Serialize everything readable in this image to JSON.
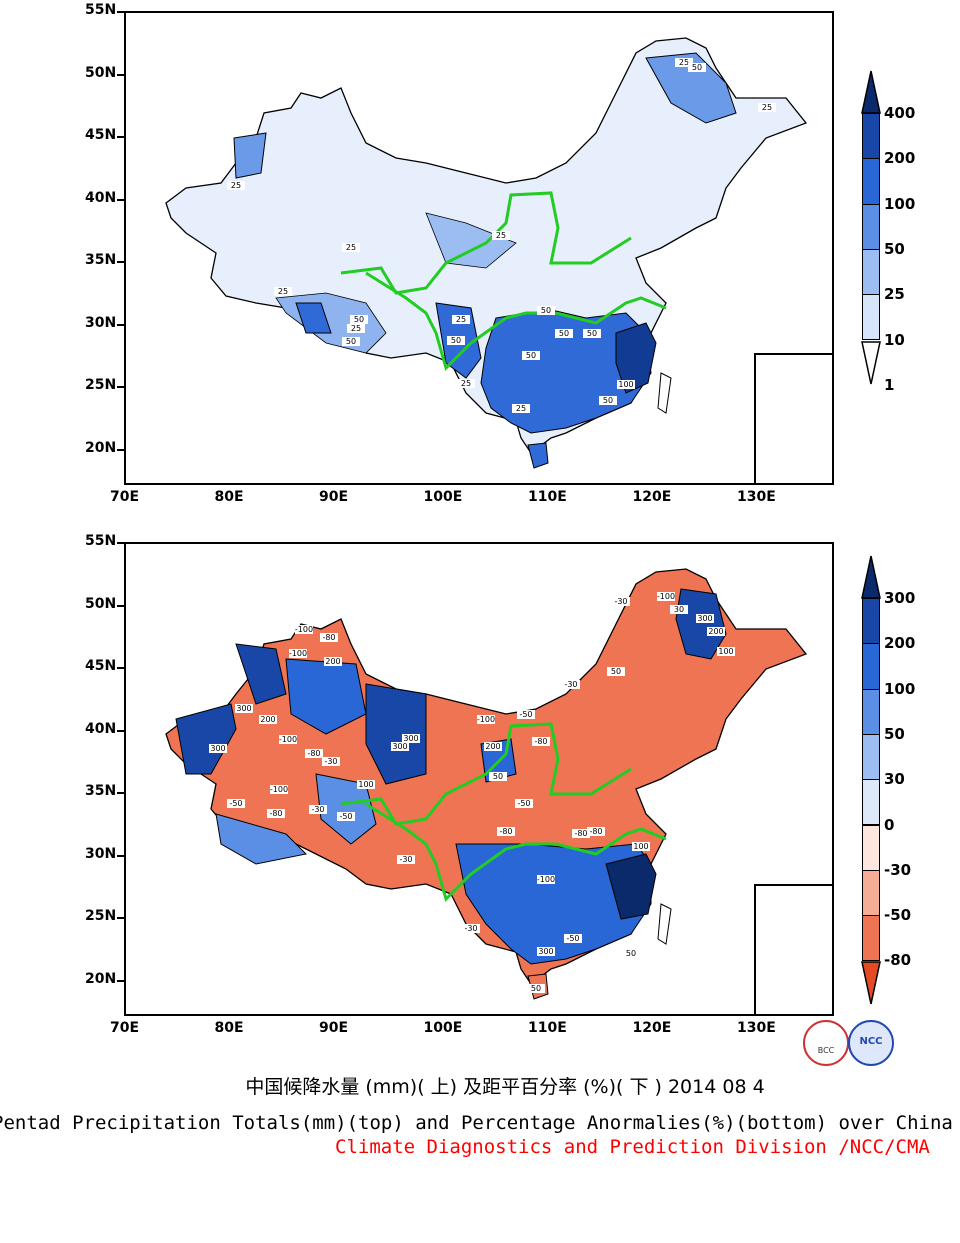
{
  "top_map": {
    "y_axis_labels": [
      "55N",
      "50N",
      "45N",
      "40N",
      "35N",
      "30N",
      "25N",
      "20N"
    ],
    "x_axis_labels": [
      "70E",
      "80E",
      "90E",
      "100E",
      "110E",
      "120E",
      "130E"
    ],
    "contour_labels": [
      "25",
      "50",
      "25",
      "25",
      "25",
      "25",
      "50",
      "25",
      "25",
      "50",
      "25",
      "50",
      "50",
      "25",
      "50",
      "25",
      "50",
      "100",
      "50",
      "50"
    ],
    "colorbar": {
      "labels": [
        "400",
        "200",
        "100",
        "50",
        "25",
        "10",
        "1"
      ],
      "colors": [
        "#0b2a6b",
        "#1847a8",
        "#2a67d6",
        "#5b8fe6",
        "#9cbdf2",
        "#d7e5fa",
        "#ffffff"
      ]
    }
  },
  "bottom_map": {
    "y_axis_labels": [
      "55N",
      "50N",
      "45N",
      "40N",
      "35N",
      "30N",
      "25N",
      "20N"
    ],
    "x_axis_labels": [
      "70E",
      "80E",
      "90E",
      "100E",
      "110E",
      "120E",
      "130E"
    ],
    "contour_labels": [
      "-100",
      "-80",
      "-100",
      "200",
      "300",
      "200",
      "-100",
      "-80",
      "-30",
      "300",
      "300",
      "-100",
      "-50",
      "-80",
      "-30",
      "-50",
      "100",
      "300",
      "200",
      "-100",
      "-80",
      "50",
      "-50",
      "-80",
      "-100",
      "-30",
      "30",
      "300",
      "200",
      "100",
      "50",
      "-30",
      "-50",
      "-80",
      "-100",
      "-30",
      "-50",
      "100",
      "-80",
      "-30",
      "50",
      "300",
      "50"
    ],
    "colorbar": {
      "labels": [
        "300",
        "200",
        "100",
        "50",
        "30",
        "0",
        "-30",
        "-50",
        "-80"
      ],
      "colors": [
        "#0b2a6b",
        "#1847a8",
        "#2a67d6",
        "#5b8fe6",
        "#9cbdf2",
        "#dde8f8",
        "#fde6de",
        "#f6ad95",
        "#ef7453",
        "#e34a25"
      ]
    }
  },
  "logos": {
    "left": "BCC",
    "right": "NCC"
  },
  "caption": {
    "chinese": "中国候降水量 (mm)( 上) 及距平百分率 (%)( 下 ) 2014 08 4",
    "english": "Pentad Precipitation Totals(mm)(top) and Percentage Anormalies(%)(bottom) over China",
    "division": "Climate Diagnostics and Prediction Division /NCC/CMA"
  }
}
